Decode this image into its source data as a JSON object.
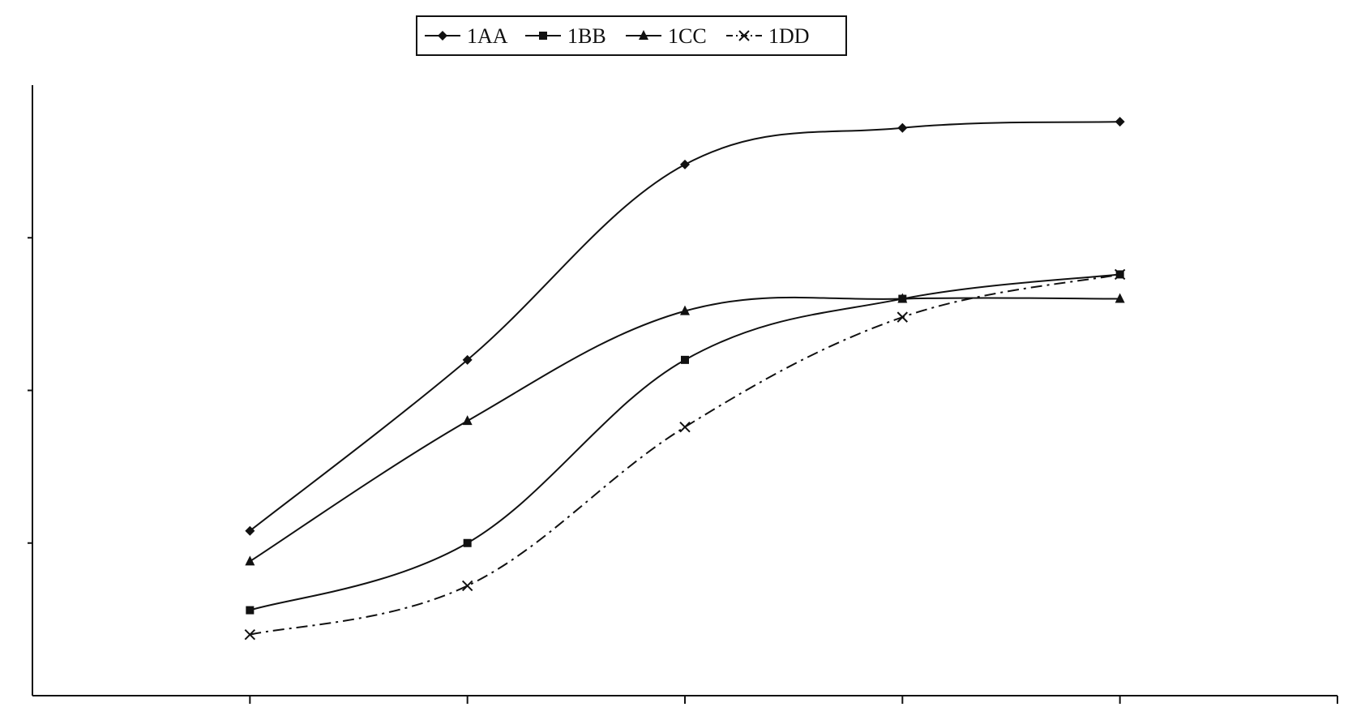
{
  "chart_data": {
    "type": "line",
    "title": "",
    "xlabel": "",
    "ylabel": "",
    "x": [
      1,
      2,
      3,
      4,
      5
    ],
    "xlim": [
      0,
      6
    ],
    "ylim": [
      0,
      100
    ],
    "grid": false,
    "legend_position": "top-center",
    "smooth": true,
    "series": [
      {
        "name": "1AA",
        "marker": "diamond",
        "line_style": "solid",
        "color": "#111111",
        "values": [
          27,
          55,
          87,
          93,
          94
        ]
      },
      {
        "name": "1BB",
        "marker": "square",
        "line_style": "solid",
        "color": "#111111",
        "values": [
          14,
          25,
          55,
          65,
          69
        ]
      },
      {
        "name": "1CC",
        "marker": "triangle",
        "line_style": "solid",
        "color": "#111111",
        "values": [
          22,
          45,
          63,
          65,
          65
        ]
      },
      {
        "name": "1DD",
        "marker": "x",
        "line_style": "dash-dot",
        "color": "#111111",
        "values": [
          10,
          18,
          44,
          62,
          69
        ]
      }
    ]
  }
}
